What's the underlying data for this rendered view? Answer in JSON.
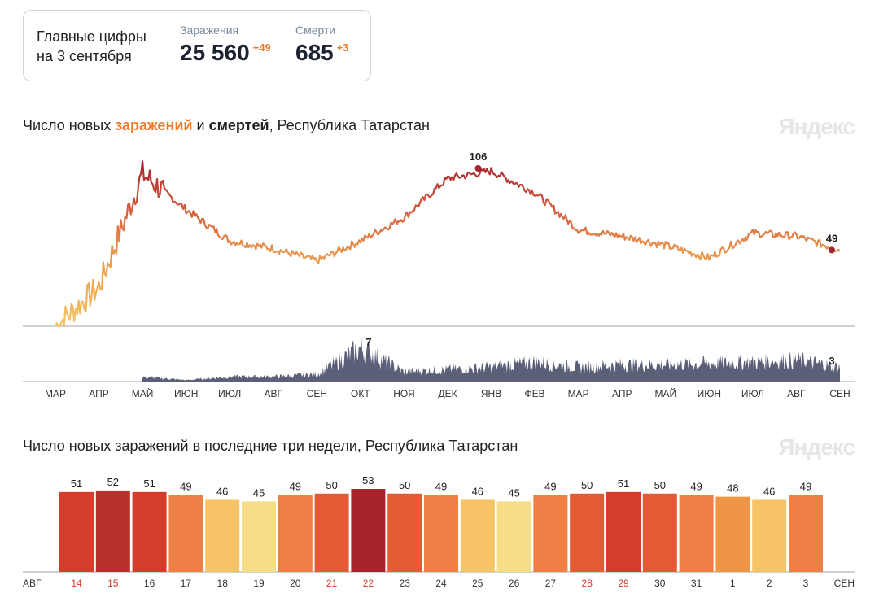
{
  "summary": {
    "label_line1": "Главные цифры",
    "label_line2": "на 3 сентября",
    "cases_label": "Заражения",
    "cases_value": "25 560",
    "cases_delta": "+49",
    "deaths_label": "Смерти",
    "deaths_value": "685",
    "deaths_delta": "+3"
  },
  "chart1_title": {
    "prefix": "Число новых ",
    "infections": "заражений",
    "and": " и ",
    "deaths": "смертей",
    "suffix": ", Республика Татарстан"
  },
  "chart2_title": "Число новых заражений в последние три недели, Республика Татарстан",
  "brand": "Яндекс",
  "colors": {
    "orange_text": "#f07a2b",
    "deaths_area": "#5b6078",
    "peak_dot": "#a4232d"
  },
  "chart_data": [
    {
      "type": "line",
      "series": [
        {
          "name": "заражения",
          "x": [
            "2020-03",
            "2020-04",
            "2020-05",
            "2020-06",
            "2020-07",
            "2020-08",
            "2020-09",
            "2020-10",
            "2020-11",
            "2020-12",
            "2021-01",
            "2021-02",
            "2021-03",
            "2021-04",
            "2021-05",
            "2021-06",
            "2021-07",
            "2021-08",
            "2021-09"
          ],
          "values": [
            0,
            25,
            98,
            75,
            55,
            50,
            42,
            55,
            70,
            95,
            100,
            86,
            62,
            58,
            52,
            44,
            60,
            58,
            49
          ]
        }
      ],
      "annotations": [
        {
          "label": "106"
        },
        {
          "label": "49"
        }
      ]
    },
    {
      "type": "area",
      "series": [
        {
          "name": "смерти",
          "x": [
            "2020-03",
            "2020-04",
            "2020-05",
            "2020-06",
            "2020-07",
            "2020-08",
            "2020-09",
            "2020-10",
            "2020-11",
            "2020-12",
            "2021-01",
            "2021-02",
            "2021-03",
            "2021-04",
            "2021-05",
            "2021-06",
            "2021-07",
            "2021-08",
            "2021-09"
          ],
          "values": [
            0,
            0.3,
            1,
            0.3,
            1,
            1,
            1.5,
            7,
            2,
            2.5,
            3,
            4,
            3,
            3.5,
            3.5,
            3.8,
            4,
            4.5,
            3
          ]
        }
      ],
      "annotations": [
        {
          "label": "7"
        },
        {
          "label": "3"
        }
      ],
      "x_tick_labels": [
        "МАР",
        "АПР",
        "МАЙ",
        "ИЮН",
        "ИЮЛ",
        "АВГ",
        "СЕН",
        "ОКТ",
        "НОЯ",
        "ДЕК",
        "ЯНВ",
        "ФЕВ",
        "МАР",
        "АПР",
        "МАЙ",
        "ИЮН",
        "ИЮЛ",
        "АВГ",
        "СЕН"
      ]
    },
    {
      "type": "bar",
      "categories": [
        "14",
        "15",
        "16",
        "17",
        "18",
        "19",
        "20",
        "21",
        "22",
        "23",
        "24",
        "25",
        "26",
        "27",
        "28",
        "29",
        "30",
        "31",
        "1",
        "2",
        "3"
      ],
      "values": [
        51,
        52,
        51,
        49,
        46,
        45,
        49,
        50,
        53,
        50,
        49,
        46,
        45,
        49,
        50,
        51,
        50,
        49,
        48,
        46,
        49
      ],
      "colors": [
        "#d43c2c",
        "#b8302c",
        "#d43c2c",
        "#ee7f45",
        "#f6c367",
        "#f8dd87",
        "#ee7f45",
        "#e45a35",
        "#a4232d",
        "#e45a35",
        "#ee7f45",
        "#f6c367",
        "#f8dd87",
        "#ee7f45",
        "#e45a35",
        "#d43c2c",
        "#e45a35",
        "#ee7f45",
        "#f09445",
        "#f6c367",
        "#ee7f45"
      ],
      "category_label_colors": [
        "#d43c2c",
        "#d43c2c",
        "#333",
        "#333",
        "#333",
        "#333",
        "#333",
        "#d43c2c",
        "#d43c2c",
        "#333",
        "#333",
        "#333",
        "#333",
        "#333",
        "#d43c2c",
        "#d43c2c",
        "#333",
        "#333",
        "#333",
        "#333",
        "#333"
      ],
      "x_start_label": "АВГ",
      "x_end_label": "СЕН"
    }
  ]
}
